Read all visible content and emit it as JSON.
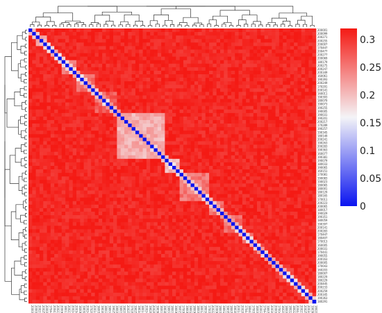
{
  "chart_data": {
    "type": "heatmap",
    "title": "",
    "xlabel": "",
    "ylabel": "",
    "labels": [
      "200001",
      "200099",
      "200271",
      "200255",
      "200007",
      "170447",
      "200477",
      "200277",
      "200069",
      "180179",
      "200275",
      "200247",
      "200349",
      "160061",
      "190393",
      "200249",
      "170291",
      "200141",
      "160011",
      "190393",
      "180079",
      "190073",
      "190255",
      "190005",
      "190031",
      "190201",
      "200217",
      "170289",
      "190257",
      "190345",
      "180149",
      "200241",
      "190263",
      "200283",
      "190363",
      "160077",
      "190381",
      "190079",
      "180033",
      "190065",
      "160151",
      "170081",
      "190083",
      "190023",
      "180065",
      "180001",
      "180129",
      "180165",
      "170011",
      "200223",
      "200065",
      "180017",
      "190029",
      "190351",
      "180059",
      "190397",
      "200141",
      "200283",
      "170447",
      "180407",
      "170013",
      "160005",
      "200031",
      "170441",
      "190055",
      "200163",
      "200005",
      "170043",
      "160203",
      "180007",
      "180229",
      "180229",
      "200445",
      "200233",
      "200259",
      "200345",
      "190363",
      "180291"
    ],
    "display_values": [
      [
        0.0
      ]
    ],
    "description_only_not_text": false,
    "colorscale": {
      "min_color": "#0a14f0",
      "mid_color": "#f4f4f7",
      "max_color": "#f41a14",
      "min": 0,
      "max": 0.32
    },
    "colorbar_ticks": [
      "0.3",
      "0.25",
      "0.2",
      "0.15",
      "0.1",
      "0.05",
      "0"
    ],
    "colorbar_tick_values": [
      0.3,
      0.25,
      0.2,
      0.15,
      0.1,
      0.05,
      0
    ],
    "diagonal_value": 0,
    "typical_offdiagonal_value": 0.3,
    "clusters": [
      {
        "start": 2,
        "end": 4,
        "value": 0.22
      },
      {
        "start": 9,
        "end": 12,
        "value": 0.24
      },
      {
        "start": 13,
        "end": 17,
        "value": 0.26
      },
      {
        "start": 18,
        "end": 23,
        "value": 0.27
      },
      {
        "start": 24,
        "end": 36,
        "value": 0.21
      },
      {
        "start": 37,
        "end": 40,
        "value": 0.2
      },
      {
        "start": 41,
        "end": 48,
        "value": 0.25
      },
      {
        "start": 49,
        "end": 52,
        "value": 0.25
      },
      {
        "start": 53,
        "end": 57,
        "value": 0.26
      },
      {
        "start": 58,
        "end": 60,
        "value": 0.25
      },
      {
        "start": 61,
        "end": 63,
        "value": 0.27
      },
      {
        "start": 68,
        "end": 71,
        "value": 0.27
      }
    ],
    "dendrogram": "hierarchical clustering dendrograms on top and left"
  }
}
